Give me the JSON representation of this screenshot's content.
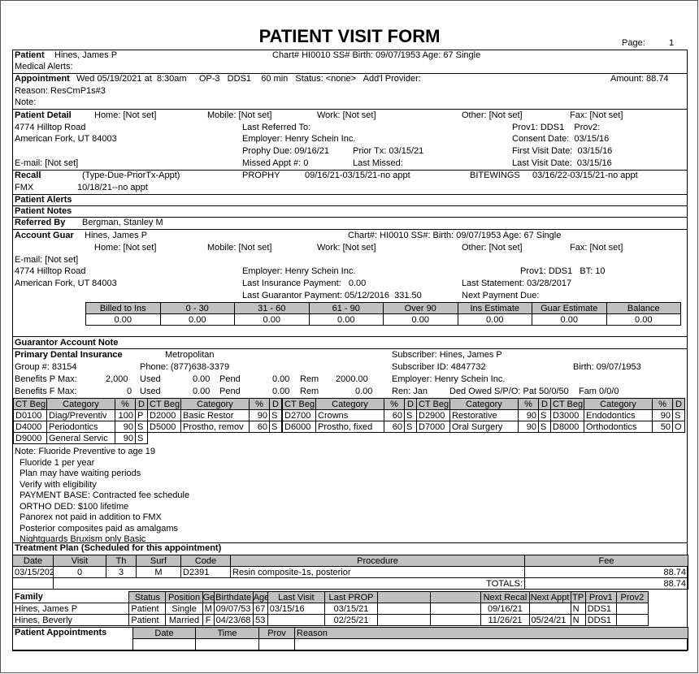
{
  "title": "PATIENT VISIT FORM",
  "page": {
    "label": "Page:",
    "number": "1"
  },
  "patient": {
    "label": "Patient",
    "name": "Hines, James P",
    "chart_line": "Chart# HI0010  SS#   Birth: 09/07/1953  Age: 67 Single",
    "medical_alerts": "Medical Alerts:"
  },
  "appointment": {
    "label": "Appointment",
    "line": "Wed 05/19/2021 at  8:30am     OP-3   DDS1    60 min   Status: <none>   Add'l Provider:",
    "amount": "Amount: 88.74",
    "reason": "Reason: ResCmP1s#3",
    "note": "Note:"
  },
  "detail": {
    "label": "Patient Detail",
    "home": "Home: [Not set]",
    "mobile": "Mobile: [Not set]",
    "work": "Work: [Not set]",
    "other": "Other: [Not set]",
    "fax": "Fax: [Not set]",
    "address1": "4774 Hilltop Road",
    "address2": "American Fork, UT 84003",
    "email": "E-mail: [Not set]",
    "last_referred": "Last Referred To:",
    "employer": "Employer: Henry Schein Inc.",
    "prophy_due": "Prophy Due: 09/16/21",
    "prior_tx": "Prior Tx: 03/15/21",
    "missed": "Missed Appt #: 0",
    "last_missed": "Last Missed:",
    "prov": "Prov1: DDS1    Prov2:",
    "consent": "Consent Date:  03/15/16",
    "first_visit": "First Visit Date:  03/15/16",
    "last_visit": "Last Visit Date:  03/15/16"
  },
  "recall": {
    "label": "Recall",
    "legend": "(Type-Due-PriorTx-Appt)",
    "prophy_type": "PROPHY",
    "prophy": "09/16/21-03/15/21-no appt",
    "bw_type": "BITEWINGS",
    "bw": "03/16/22-03/15/21-no appt",
    "fmx_type": "FMX",
    "fmx": "10/18/21--no appt"
  },
  "alerts_label": "Patient Alerts",
  "notes_label": "Patient Notes",
  "referred": {
    "label": "Referred By",
    "name": "Bergman, Stanley M"
  },
  "guar": {
    "label": "Account Guar",
    "name": "Hines, James P",
    "chart_line": "Chart#: HI0010  SS#:   Birth: 09/07/1953  Age: 67  Single",
    "home": "Home: [Not set]",
    "mobile": "Mobile: [Not set]",
    "work": "Work: [Not set]",
    "other": "Other: [Not set]",
    "fax": "Fax: [Not set]",
    "email": "E-mail: [Not set]",
    "address1": "4774 Hilltop Road",
    "address2": "American Fork, UT 84003",
    "employer": "Employer: Henry Schein Inc.",
    "last_ins": "Last Insurance Payment:   0.00",
    "last_guar": "Last Guarantor Payment: 05/12/2016  331.50",
    "prov": "Prov1: DDS1   BT: 10",
    "last_statement": "Last Statement: 03/28/2017",
    "next_payment": "Next Payment Due:"
  },
  "aging": {
    "headers": [
      "Billed to Ins",
      "0 - 30",
      "31 - 60",
      "61 - 90",
      "Over 90",
      "Ins Estimate",
      "Guar Estimate",
      "Balance"
    ],
    "values": [
      "0.00",
      "0.00",
      "0.00",
      "0.00",
      "0.00",
      "0.00",
      "0.00",
      "0.00"
    ]
  },
  "guar_note_label": "Guarantor Account Note",
  "insurance": {
    "label": "Primary Dental Insurance",
    "carrier": "Metropolitan",
    "subscriber": "Subscriber:  Hines, James P",
    "group": "Group #: 83154",
    "phone": "Phone: (877)638-3379",
    "subscriber_id": "Subscriber ID: 4847732",
    "birth": "Birth: 09/07/1953",
    "p_max_label": "Benefits P Max:",
    "p_max": "2,000",
    "p_used_label": "Used",
    "p_used": "0.00",
    "p_pend_label": "Pend",
    "p_pend": "0.00",
    "p_rem_label": "Rem",
    "p_rem": "2000.00",
    "employer": "Employer: Henry Schein Inc.",
    "f_max_label": "Benefits F Max:",
    "f_max": "0",
    "f_used_label": "Used",
    "f_used": "0.00",
    "f_pend_label": "Pend",
    "f_pend": "0.00",
    "f_rem_label": "Rem",
    "f_rem": "0.00",
    "ren": "Ren: Jan",
    "ded": "Ded Owed S/P/O: Pat 50/0/50    Fam 0/0/0"
  },
  "coverage": {
    "headers": [
      "CT Beg",
      "Category",
      "%",
      "D"
    ],
    "groups": [
      [
        [
          "D0100",
          "Diag/Preventiv",
          "100",
          "P"
        ],
        [
          "D4000",
          "Periodontics",
          "90",
          "S"
        ],
        [
          "D9000",
          "General Servic",
          "90",
          "S"
        ]
      ],
      [
        [
          "D2000",
          "Basic Restor",
          "90",
          "S"
        ],
        [
          "D5000",
          "Prostho, remov",
          "60",
          "S"
        ]
      ],
      [
        [
          "D2700",
          "Crowns",
          "60",
          "S"
        ],
        [
          "D6000",
          "Prostho, fixed",
          "60",
          "S"
        ]
      ],
      [
        [
          "D2900",
          "Restorative",
          "90",
          "S"
        ],
        [
          "D7000",
          "Oral Surgery",
          "90",
          "S"
        ]
      ],
      [
        [
          "D3000",
          "Endodontics",
          "90",
          "S"
        ],
        [
          "D8000",
          "Orthodontics",
          "50",
          "O"
        ]
      ]
    ]
  },
  "ins_notes": [
    "Note: Fluoride Preventive to age 19",
    "Fluoride 1 per year",
    "Plan may have waiting periods",
    "Verify with eligibility",
    "PAYMENT BASE: Contracted fee schedule",
    "ORTHO DED: $100 lifetime",
    "Panorex not paid in addition to FMX",
    "Posterior composites paid as amalgams",
    "Nightguards Bruxism only Basic"
  ],
  "treatment": {
    "label": "Treatment Plan (Scheduled for this appointment)",
    "headers": [
      "Date",
      "Visit",
      "Th",
      "Surf",
      "Code",
      "Procedure",
      "Fee"
    ],
    "rows": [
      [
        "03/15/2021",
        "0",
        "3",
        "M",
        "D2391",
        "Resin composite-1s, posterior",
        "88.74"
      ]
    ],
    "totals_label": "TOTALS:",
    "total": "88.74"
  },
  "family": {
    "label": "Family",
    "headers": [
      "Status",
      "Position",
      "Gen",
      "Birthdate",
      "Age",
      "Last Visit",
      "Last PROP",
      "",
      "",
      "Next Recal",
      "Next Appt",
      "TP",
      "Prov1",
      "Prov2"
    ],
    "rows": [
      [
        "Hines, James P",
        "Patient",
        "Single",
        "M",
        "09/07/53",
        "67",
        "03/15/16",
        "03/15/21",
        "",
        "",
        "09/16/21",
        "",
        "N",
        "DDS1",
        ""
      ],
      [
        "Hines, Beverly",
        "Patient",
        "Married",
        "F",
        "04/23/68",
        "53",
        "",
        "02/25/21",
        "",
        "",
        "11/26/21",
        "05/24/21",
        "N",
        "DDS1",
        ""
      ]
    ]
  },
  "appointments": {
    "label": "Patient Appointments",
    "headers": [
      "Date",
      "Time",
      "Prov",
      "Reason"
    ]
  }
}
